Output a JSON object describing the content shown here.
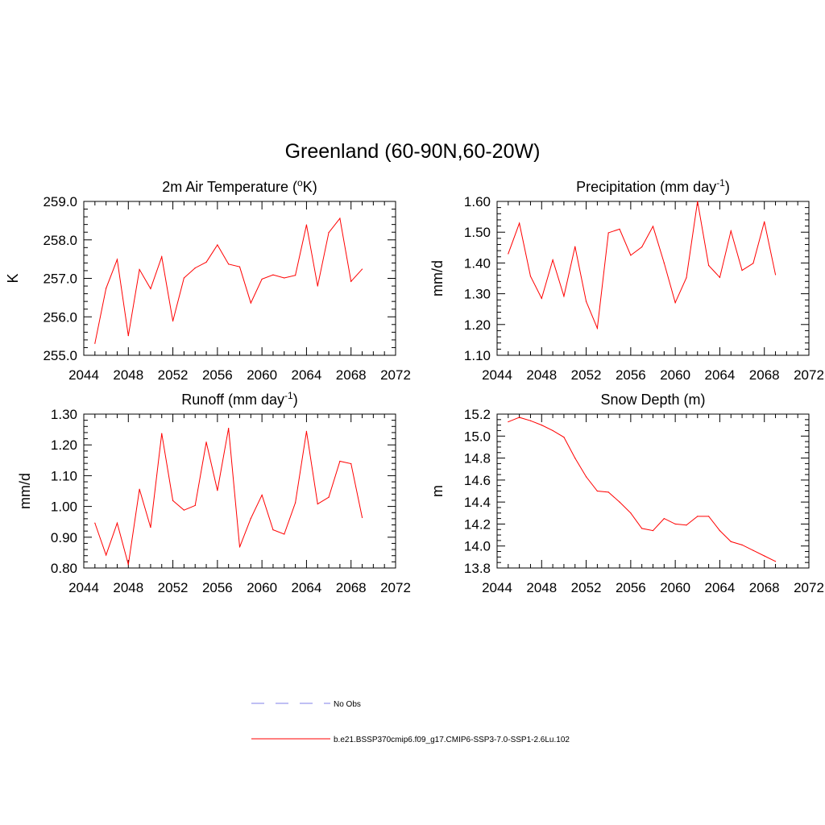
{
  "page_title": "Greenland (60-90N,60-20W)",
  "colors": {
    "model": "#ff0000",
    "obs": "#9999ee",
    "axis": "#000000"
  },
  "legend": {
    "obs_label": "No Obs",
    "model_label": "b.e21.BSSP370cmip6.f09_g17.CMIP6-SSP3-7.0-SSP1-2.6Lu.102"
  },
  "chart_data": [
    {
      "type": "line",
      "title": "2m Air Temperature (°K)",
      "title_parts": [
        "2m Air Temperature (",
        "o",
        "K)"
      ],
      "ylabel": "K",
      "xlim": [
        2044,
        2072
      ],
      "ylim": [
        255.0,
        259.0
      ],
      "xticks": [
        2044,
        2048,
        2052,
        2056,
        2060,
        2064,
        2068,
        2072
      ],
      "yticks": [
        "255.0",
        "256.0",
        "257.0",
        "258.0",
        "259.0"
      ],
      "ytick_values": [
        255.0,
        256.0,
        257.0,
        258.0,
        259.0
      ],
      "yminor": 0.2,
      "x": [
        2045,
        2046,
        2047,
        2048,
        2049,
        2050,
        2051,
        2052,
        2053,
        2054,
        2055,
        2056,
        2057,
        2058,
        2059,
        2060,
        2061,
        2062,
        2063,
        2064,
        2065,
        2066,
        2067,
        2068,
        2069
      ],
      "series": [
        {
          "values": [
            255.31,
            256.74,
            257.49,
            255.51,
            257.23,
            256.73,
            257.56,
            255.89,
            257.01,
            257.27,
            257.42,
            257.87,
            257.37,
            257.3,
            256.36,
            256.98,
            257.09,
            257.01,
            257.08,
            258.39,
            256.8,
            258.19,
            258.56,
            256.92,
            257.24
          ]
        }
      ]
    },
    {
      "type": "line",
      "title": "Precipitation (mm day-1)",
      "title_parts": [
        "Precipitation (mm day",
        "-1",
        ")"
      ],
      "ylabel": "mm/d",
      "xlim": [
        2044,
        2072
      ],
      "ylim": [
        1.1,
        1.6
      ],
      "xticks": [
        2044,
        2048,
        2052,
        2056,
        2060,
        2064,
        2068,
        2072
      ],
      "yticks": [
        "1.10",
        "1.20",
        "1.30",
        "1.40",
        "1.50",
        "1.60"
      ],
      "ytick_values": [
        1.1,
        1.2,
        1.3,
        1.4,
        1.5,
        1.6
      ],
      "yminor": 0.02,
      "x": [
        2045,
        2046,
        2047,
        2048,
        2049,
        2050,
        2051,
        2052,
        2053,
        2054,
        2055,
        2056,
        2057,
        2058,
        2059,
        2060,
        2061,
        2062,
        2063,
        2064,
        2065,
        2066,
        2067,
        2068,
        2069
      ],
      "series": [
        {
          "values": [
            1.43,
            1.529,
            1.357,
            1.285,
            1.41,
            1.292,
            1.453,
            1.275,
            1.188,
            1.498,
            1.51,
            1.425,
            1.452,
            1.519,
            1.4,
            1.271,
            1.352,
            1.6,
            1.392,
            1.353,
            1.504,
            1.376,
            1.399,
            1.534,
            1.362
          ]
        }
      ]
    },
    {
      "type": "line",
      "title": "Runoff (mm day-1)",
      "title_parts": [
        "Runoff (mm day",
        "-1",
        ")"
      ],
      "ylabel": "mm/d",
      "xlim": [
        2044,
        2072
      ],
      "ylim": [
        0.8,
        1.3
      ],
      "xticks": [
        2044,
        2048,
        2052,
        2056,
        2060,
        2064,
        2068,
        2072
      ],
      "yticks": [
        "0.80",
        "0.90",
        "1.00",
        "1.10",
        "1.20",
        "1.30"
      ],
      "ytick_values": [
        0.8,
        0.9,
        1.0,
        1.1,
        1.2,
        1.3
      ],
      "yminor": 0.02,
      "x": [
        2045,
        2046,
        2047,
        2048,
        2049,
        2050,
        2051,
        2052,
        2053,
        2054,
        2055,
        2056,
        2057,
        2058,
        2059,
        2060,
        2061,
        2062,
        2063,
        2064,
        2065,
        2066,
        2067,
        2068,
        2069
      ],
      "series": [
        {
          "values": [
            0.946,
            0.842,
            0.946,
            0.811,
            1.056,
            0.932,
            1.237,
            1.019,
            0.988,
            1.003,
            1.209,
            1.052,
            1.254,
            0.868,
            0.961,
            1.037,
            0.924,
            0.91,
            1.012,
            1.244,
            1.008,
            1.03,
            1.147,
            1.139,
            0.964
          ]
        }
      ]
    },
    {
      "type": "line",
      "title": "Snow Depth (m)",
      "title_parts": [
        "Snow Depth (m)",
        "",
        ""
      ],
      "ylabel": "m",
      "xlim": [
        2044,
        2072
      ],
      "ylim": [
        13.8,
        15.2
      ],
      "xticks": [
        2044,
        2048,
        2052,
        2056,
        2060,
        2064,
        2068,
        2072
      ],
      "yticks": [
        "13.8",
        "14.0",
        "14.2",
        "14.4",
        "14.6",
        "14.8",
        "15.0",
        "15.2"
      ],
      "ytick_values": [
        13.8,
        14.0,
        14.2,
        14.4,
        14.6,
        14.8,
        15.0,
        15.2
      ],
      "yminor": 0.05,
      "x": [
        2045,
        2046,
        2047,
        2048,
        2049,
        2050,
        2051,
        2052,
        2053,
        2054,
        2055,
        2056,
        2057,
        2058,
        2059,
        2060,
        2061,
        2062,
        2063,
        2064,
        2065,
        2066,
        2067,
        2068,
        2069
      ],
      "series": [
        {
          "values": [
            15.13,
            15.17,
            15.14,
            15.1,
            15.05,
            14.99,
            14.8,
            14.63,
            14.5,
            14.49,
            14.4,
            14.3,
            14.16,
            14.14,
            14.25,
            14.2,
            14.19,
            14.27,
            14.27,
            14.14,
            14.04,
            14.01,
            13.96,
            13.91,
            13.86
          ]
        }
      ]
    }
  ]
}
